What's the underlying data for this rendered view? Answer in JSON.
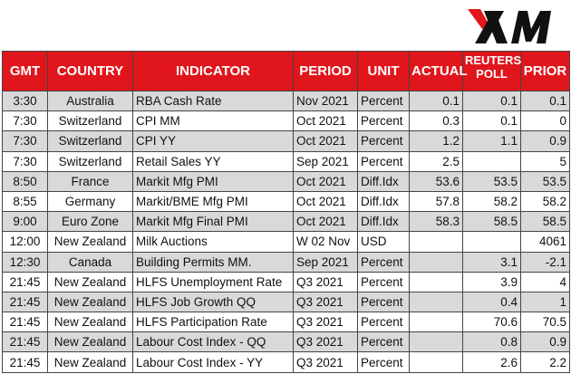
{
  "brand": {
    "logo_text": "XM",
    "accent_color": "#e0161c",
    "row_shade_color": "#d9d9d9"
  },
  "table": {
    "headers": {
      "gmt": "GMT",
      "country": "COUNTRY",
      "indicator": "INDICATOR",
      "period": "PERIOD",
      "unit": "UNIT",
      "actual": "ACTUAL",
      "reuters_poll_line1": "REUTERS",
      "reuters_poll_line2": "POLL",
      "prior": "PRIOR"
    },
    "rows": [
      {
        "gmt": "3:30",
        "country": "Australia",
        "indicator": "RBA Cash Rate",
        "period": "Nov 2021",
        "unit": "Percent",
        "actual": "0.1",
        "poll": "0.1",
        "prior": "0.1",
        "shaded": true
      },
      {
        "gmt": "7:30",
        "country": "Switzerland",
        "indicator": "CPI MM",
        "period": "Oct 2021",
        "unit": "Percent",
        "actual": "0.3",
        "poll": "0.1",
        "prior": "0",
        "shaded": false
      },
      {
        "gmt": "7:30",
        "country": "Switzerland",
        "indicator": "CPI YY",
        "period": "Oct 2021",
        "unit": "Percent",
        "actual": "1.2",
        "poll": "1.1",
        "prior": "0.9",
        "shaded": true
      },
      {
        "gmt": "7:30",
        "country": "Switzerland",
        "indicator": "Retail Sales YY",
        "period": "Sep 2021",
        "unit": "Percent",
        "actual": "2.5",
        "poll": "",
        "prior": "5",
        "shaded": false
      },
      {
        "gmt": "8:50",
        "country": "France",
        "indicator": "Markit Mfg PMI",
        "period": "Oct 2021",
        "unit": "Diff.Idx",
        "actual": "53.6",
        "poll": "53.5",
        "prior": "53.5",
        "shaded": true
      },
      {
        "gmt": "8:55",
        "country": "Germany",
        "indicator": "Markit/BME Mfg PMI",
        "period": "Oct 2021",
        "unit": "Diff.Idx",
        "actual": "57.8",
        "poll": "58.2",
        "prior": "58.2",
        "shaded": false
      },
      {
        "gmt": "9:00",
        "country": "Euro Zone",
        "indicator": "Markit Mfg Final PMI",
        "period": "Oct 2021",
        "unit": "Diff.Idx",
        "actual": "58.3",
        "poll": "58.5",
        "prior": "58.5",
        "shaded": true
      },
      {
        "gmt": "12:00",
        "country": "New Zealand",
        "indicator": "Milk Auctions",
        "period": "W 02 Nov",
        "unit": "USD",
        "actual": "",
        "poll": "",
        "prior": "4061",
        "shaded": false
      },
      {
        "gmt": "12:30",
        "country": "Canada",
        "indicator": "Building Permits MM.",
        "period": "Sep 2021",
        "unit": "Percent",
        "actual": "",
        "poll": "3.1",
        "prior": "-2.1",
        "shaded": true
      },
      {
        "gmt": "21:45",
        "country": "New Zealand",
        "indicator": "HLFS Unemployment Rate",
        "period": "Q3 2021",
        "unit": "Percent",
        "actual": "",
        "poll": "3.9",
        "prior": "4",
        "shaded": false
      },
      {
        "gmt": "21:45",
        "country": "New Zealand",
        "indicator": "HLFS Job Growth QQ",
        "period": "Q3 2021",
        "unit": "Percent",
        "actual": "",
        "poll": "0.4",
        "prior": "1",
        "shaded": true
      },
      {
        "gmt": "21:45",
        "country": "New Zealand",
        "indicator": "HLFS Participation Rate",
        "period": "Q3 2021",
        "unit": "Percent",
        "actual": "",
        "poll": "70.6",
        "prior": "70.5",
        "shaded": false
      },
      {
        "gmt": "21:45",
        "country": "New Zealand",
        "indicator": "Labour Cost Index - QQ",
        "period": "Q3 2021",
        "unit": "Percent",
        "actual": "",
        "poll": "0.8",
        "prior": "0.9",
        "shaded": true
      },
      {
        "gmt": "21:45",
        "country": "New Zealand",
        "indicator": "Labour Cost Index - YY",
        "period": "Q3 2021",
        "unit": "Percent",
        "actual": "",
        "poll": "2.6",
        "prior": "2.2",
        "shaded": false
      }
    ]
  }
}
